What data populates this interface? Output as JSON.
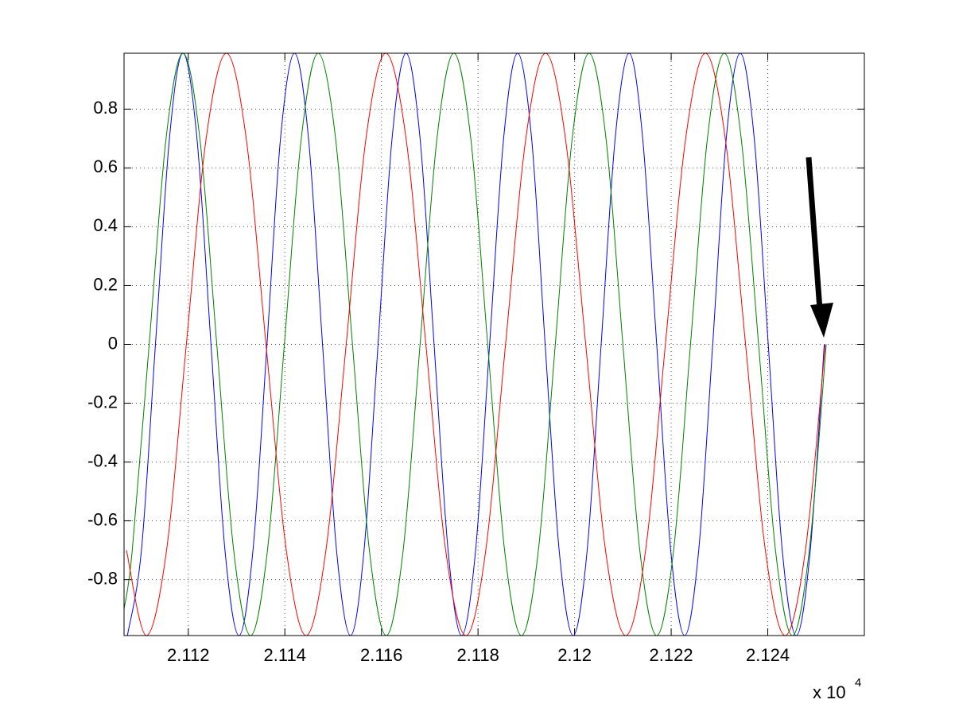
{
  "chart_data": {
    "type": "line",
    "xlim": [
      21106.7,
      21260
    ],
    "ylim": [
      -0.99,
      0.99
    ],
    "xticks": [
      {
        "value": 21120,
        "label": "2.112"
      },
      {
        "value": 21140,
        "label": "2.114"
      },
      {
        "value": 21160,
        "label": "2.116"
      },
      {
        "value": 21180,
        "label": "2.118"
      },
      {
        "value": 21200,
        "label": "2.12"
      },
      {
        "value": 21220,
        "label": "2.122"
      },
      {
        "value": 21240,
        "label": "2.124"
      }
    ],
    "yticks": [
      -0.8,
      -0.6,
      -0.4,
      -0.2,
      0,
      0.2,
      0.4,
      0.6,
      0.8
    ],
    "x_multiplier": {
      "base": "x 10",
      "exponent": "4"
    },
    "grid": true,
    "series": [
      {
        "color": "#0000ff",
        "x": [
          21107.4,
          21110.3,
          21113.2,
          21116.1,
          21118.9,
          21121.8,
          21124.7,
          21127.6,
          21130.5,
          21133.4,
          21136.3,
          21139.1,
          21142.0,
          21144.9,
          21147.8,
          21150.7,
          21153.6,
          21156.4,
          21159.3,
          21162.2,
          21165.1,
          21168.0,
          21170.9,
          21173.8,
          21176.6,
          21179.5,
          21182.4,
          21185.3,
          21188.2,
          21191.1,
          21193.9,
          21196.8,
          21199.7,
          21202.6,
          21205.5,
          21208.4,
          21211.3,
          21214.1,
          21217.0,
          21219.9,
          21222.8,
          21225.7,
          21228.6,
          21231.4,
          21234.3,
          21237.2,
          21240.1,
          21243.0,
          21245.9,
          21248.8,
          21251.7
        ],
        "values": [
          -0.99,
          -0.7,
          0,
          0.7,
          0.99,
          0.7,
          0,
          -0.7,
          -0.99,
          -0.7,
          0,
          0.7,
          0.99,
          0.7,
          0,
          -0.7,
          -0.99,
          -0.7,
          0,
          0.7,
          0.99,
          0.7,
          0,
          -0.7,
          -0.99,
          -0.7,
          0,
          0.7,
          0.99,
          0.7,
          0,
          -0.7,
          -0.99,
          -0.7,
          0,
          0.7,
          0.99,
          0.7,
          0,
          -0.7,
          -0.99,
          -0.7,
          0,
          0.7,
          0.99,
          0.7,
          0,
          -0.7,
          -0.99,
          -0.7,
          0
        ]
      },
      {
        "color": "#008000",
        "x": [
          21106.7,
          21108.4,
          21111.9,
          21115.4,
          21118.9,
          21122.4,
          21125.9,
          21129.4,
          21132.9,
          21136.4,
          21139.9,
          21143.4,
          21146.9,
          21150.5,
          21154.0,
          21157.5,
          21161.0,
          21164.5,
          21168.0,
          21171.5,
          21175.0,
          21178.5,
          21182.0,
          21185.5,
          21189.0,
          21192.5,
          21196.0,
          21199.5,
          21203.0,
          21206.5,
          21210.0,
          21213.5,
          21217.0,
          21220.5,
          21224.0,
          21227.5,
          21231.0,
          21234.5,
          21238.1,
          21241.6,
          21245.1,
          21248.6,
          21252.1
        ],
        "values": [
          -0.9,
          -0.7,
          0,
          0.7,
          0.99,
          0.7,
          0,
          -0.7,
          -0.99,
          -0.7,
          0,
          0.7,
          0.99,
          0.7,
          0,
          -0.7,
          -0.99,
          -0.7,
          0,
          0.7,
          0.99,
          0.7,
          0,
          -0.7,
          -0.99,
          -0.7,
          0,
          0.7,
          0.99,
          0.7,
          0,
          -0.7,
          -0.99,
          -0.7,
          0,
          0.7,
          0.99,
          0.7,
          0,
          -0.7,
          -0.99,
          -0.7,
          0
        ]
      },
      {
        "color": "#ff0000",
        "x": [
          21107.2,
          21111.3,
          21115.5,
          21119.6,
          21123.7,
          21127.9,
          21132.0,
          21136.1,
          21140.3,
          21144.4,
          21148.5,
          21152.7,
          21156.8,
          21160.9,
          21165.1,
          21169.2,
          21173.3,
          21177.5,
          21181.6,
          21185.7,
          21189.9,
          21194.0,
          21198.1,
          21202.3,
          21206.4,
          21210.6,
          21214.7,
          21218.8,
          21223.0,
          21227.1,
          21231.2,
          21235.4,
          21239.5,
          21243.6,
          21247.8,
          21251.9
        ],
        "values": [
          -0.7,
          -0.99,
          -0.7,
          0,
          0.7,
          0.99,
          0.7,
          0,
          -0.7,
          -0.99,
          -0.7,
          0,
          0.7,
          0.99,
          0.7,
          0,
          -0.7,
          -0.99,
          -0.7,
          0,
          0.7,
          0.99,
          0.7,
          0,
          -0.7,
          -0.99,
          -0.7,
          0,
          0.7,
          0.99,
          0.7,
          0,
          -0.7,
          -0.99,
          -0.7,
          0
        ]
      }
    ]
  }
}
